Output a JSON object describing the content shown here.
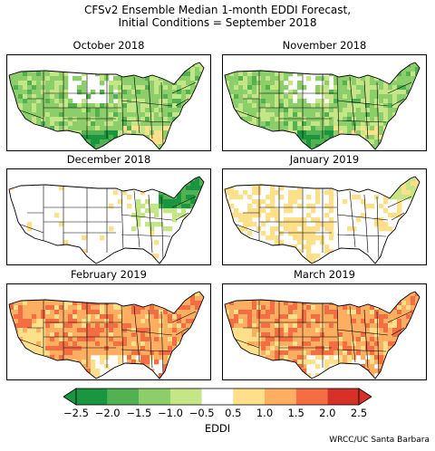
{
  "title_line1": "CFSv2 Ensemble Median 1-month EDDI Forecast,",
  "title_line2": "Initial Conditions = September 2018",
  "panels": [
    {
      "title": "October 2018",
      "pattern": "wet_widespread"
    },
    {
      "title": "November 2018",
      "pattern": "wet_widespread"
    },
    {
      "title": "December 2018",
      "pattern": "neutral_wet_northeast"
    },
    {
      "title": "January 2019",
      "pattern": "mild_dry"
    },
    {
      "title": "February 2019",
      "pattern": "dry_widespread"
    },
    {
      "title": "March 2019",
      "pattern": "dry_widespread"
    }
  ],
  "colorbar": {
    "label": "EDDI",
    "ticks": [
      "−2.5",
      "−2.0",
      "−1.5",
      "−1.0",
      "−0.5",
      "0.5",
      "1.0",
      "1.5",
      "2.0",
      "2.5"
    ],
    "bins": [
      {
        "from": -2.5,
        "to": -2.0,
        "color": "#1a9641"
      },
      {
        "from": -2.0,
        "to": -1.5,
        "color": "#52b151"
      },
      {
        "from": -1.5,
        "to": -1.0,
        "color": "#8cce69"
      },
      {
        "from": -1.0,
        "to": -0.5,
        "color": "#c4e687"
      },
      {
        "from": -0.5,
        "to": 0.5,
        "color": "#ffffff"
      },
      {
        "from": 0.5,
        "to": 1.0,
        "color": "#fee08b"
      },
      {
        "from": 1.0,
        "to": 1.5,
        "color": "#fdae61"
      },
      {
        "from": 1.5,
        "to": 2.0,
        "color": "#f46d43"
      },
      {
        "from": 2.0,
        "to": 2.5,
        "color": "#d73027"
      }
    ],
    "under_color": "#1a9641",
    "over_color": "#d73027"
  },
  "credit": "WRCC/UC Santa Barbara"
}
